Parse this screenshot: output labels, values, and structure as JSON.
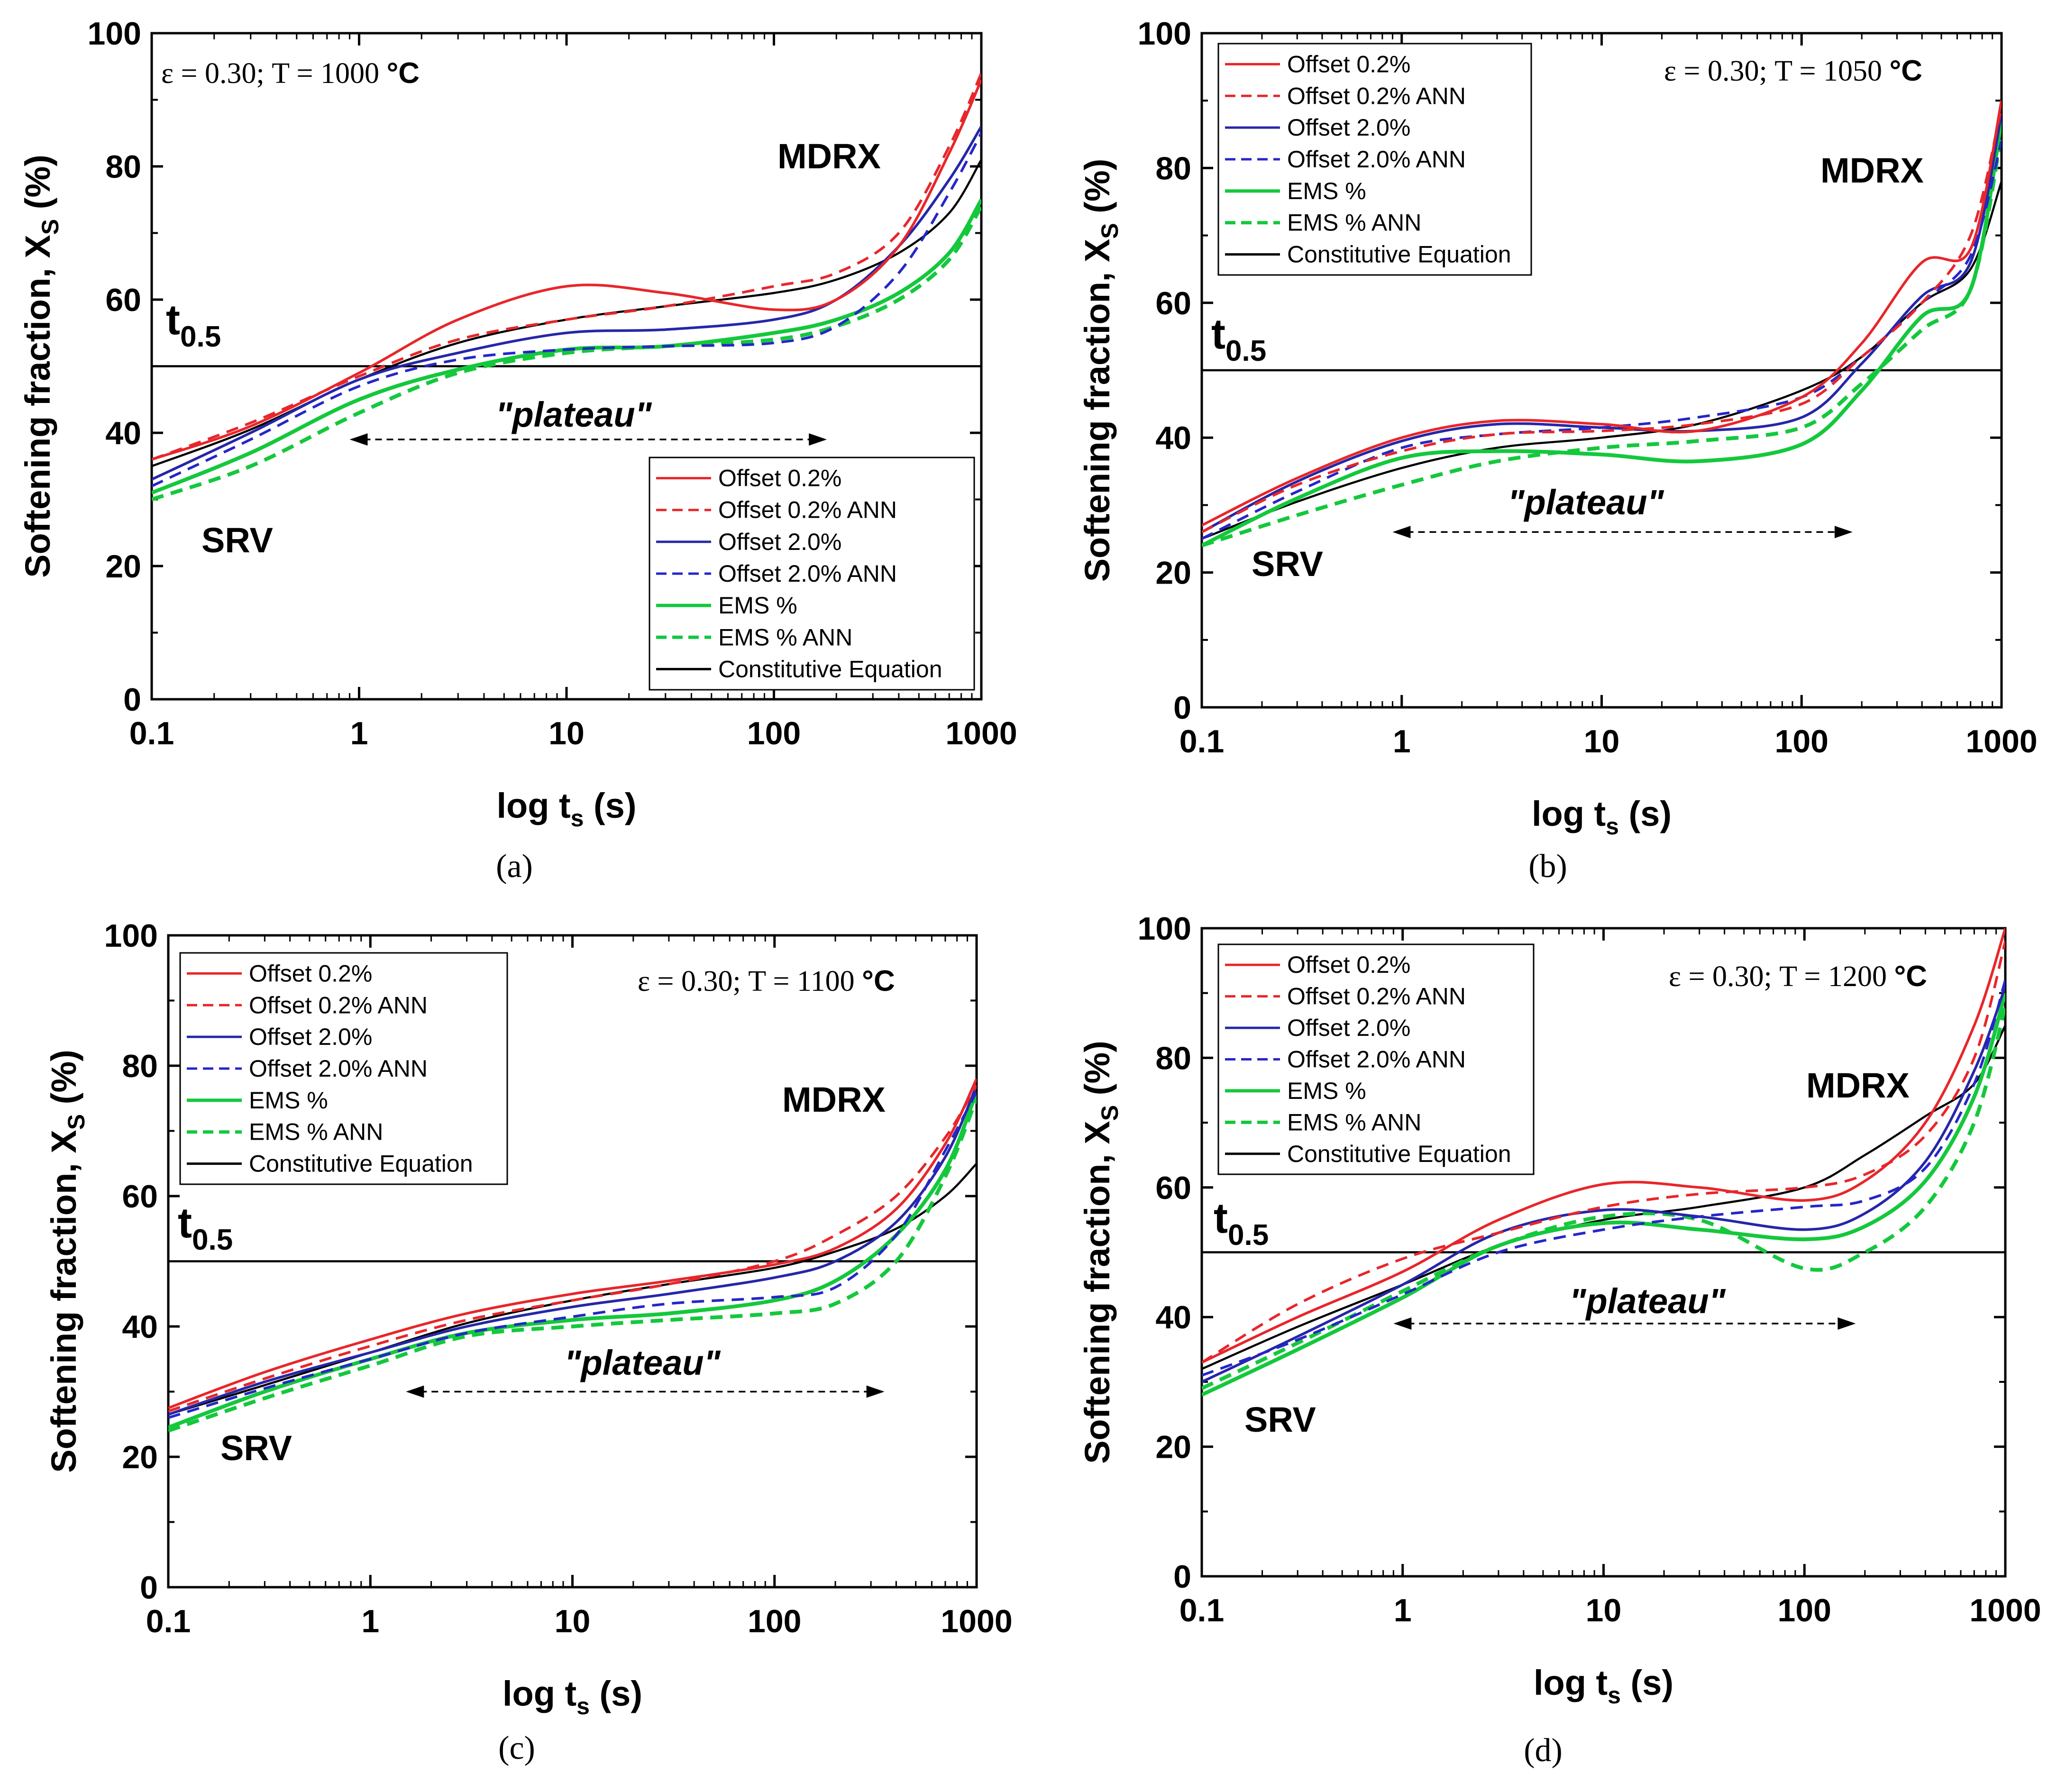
{
  "figure": {
    "series_styles": [
      {
        "name": "Offset 0.2%",
        "color": "#e8262a",
        "dashed": false
      },
      {
        "name": "Offset 0.2% ANN",
        "color": "#e8262a",
        "dashed": true
      },
      {
        "name": "Offset 2.0%",
        "color": "#2626a8",
        "dashed": false
      },
      {
        "name": "Offset 2.0% ANN",
        "color": "#2626c8",
        "dashed": true
      },
      {
        "name": "EMS %",
        "color": "#14c83c",
        "dashed": false
      },
      {
        "name": "EMS % ANN",
        "color": "#14c83c",
        "dashed": true
      },
      {
        "name": "Constitutive Equation",
        "color": "#000000",
        "dashed": false
      }
    ]
  },
  "chart_data": [
    {
      "type": "line",
      "panel_label": "(a)",
      "title": "ε = 0.30; T = 1000 °C",
      "title_main": "ε = 0.30; T = 1000 ",
      "title_unit": "°C",
      "xlabel": "log t",
      "xlabel_sub": "s",
      "xlabel_unit": " (s)",
      "ylabel": "Softening fraction, X",
      "ylabel_sub": "S",
      "ylabel_unit": " (%)",
      "xscale": "log",
      "xlim": [
        0.1,
        1000
      ],
      "ylim": [
        0,
        100
      ],
      "x_ticks": [
        "0.1",
        "1",
        "10",
        "100",
        "1000"
      ],
      "y_ticks": [
        "0",
        "20",
        "40",
        "60",
        "80",
        "100"
      ],
      "legend_position": "bottom-right",
      "annotations": {
        "t05_main": "t",
        "t05_sub": "0.5",
        "t05_level": 50,
        "plateau": "\"plateau\"",
        "plateau_range": [
          0.9,
          180
        ],
        "plateau_y": 39,
        "srv": "SRV",
        "mdrx": "MDRX"
      },
      "series": [
        {
          "name": "Offset 0.2%",
          "x": [
            0.1,
            0.3,
            1,
            3,
            10,
            30,
            100,
            200,
            400,
            700,
            1000
          ],
          "values": [
            36,
            41,
            49,
            57,
            62,
            61,
            58.5,
            60,
            68,
            82,
            93
          ]
        },
        {
          "name": "Offset 0.2% ANN",
          "x": [
            0.1,
            0.3,
            1,
            3,
            10,
            30,
            100,
            200,
            400,
            700,
            1000
          ],
          "values": [
            36,
            41.5,
            48.5,
            54,
            57,
            59,
            62,
            64,
            70,
            83,
            94
          ]
        },
        {
          "name": "Offset 2.0%",
          "x": [
            0.1,
            0.3,
            1,
            3,
            10,
            30,
            100,
            200,
            400,
            700,
            1000
          ],
          "values": [
            33,
            40,
            48,
            52,
            55,
            55.5,
            57,
            60,
            68,
            78,
            86
          ]
        },
        {
          "name": "Offset 2.0% ANN",
          "x": [
            0.1,
            0.3,
            1,
            3,
            10,
            30,
            100,
            200,
            400,
            700,
            1000
          ],
          "values": [
            32,
            39,
            47,
            51,
            52.5,
            53,
            53.5,
            56,
            64,
            76,
            85
          ]
        },
        {
          "name": "EMS %",
          "x": [
            0.1,
            0.3,
            1,
            3,
            10,
            30,
            100,
            200,
            400,
            700,
            1000
          ],
          "values": [
            31,
            37,
            45,
            49.5,
            52.5,
            53,
            55,
            57,
            61,
            67,
            75
          ]
        },
        {
          "name": "EMS % ANN",
          "x": [
            0.1,
            0.3,
            1,
            3,
            10,
            30,
            100,
            200,
            400,
            700,
            1000
          ],
          "values": [
            30,
            35,
            43,
            49,
            52,
            53,
            54,
            56,
            60,
            66,
            74
          ]
        },
        {
          "name": "Constitutive Equation",
          "x": [
            0.1,
            0.3,
            1,
            3,
            10,
            30,
            100,
            200,
            400,
            700,
            1000
          ],
          "values": [
            35,
            40.5,
            48,
            53.5,
            57,
            59,
            61,
            63,
            67,
            73,
            81
          ]
        }
      ]
    },
    {
      "type": "line",
      "panel_label": "(b)",
      "title": "ε = 0.30; T = 1050 °C",
      "title_main": "ε = 0.30; T = 1050 ",
      "title_unit": "°C",
      "xlabel": "log t",
      "xlabel_sub": "s",
      "xlabel_unit": " (s)",
      "ylabel": "Softening fraction, X",
      "ylabel_sub": "S",
      "ylabel_unit": " (%)",
      "xscale": "log",
      "xlim": [
        0.1,
        1000
      ],
      "ylim": [
        0,
        100
      ],
      "x_ticks": [
        "0.1",
        "1",
        "10",
        "100",
        "1000"
      ],
      "y_ticks": [
        "0",
        "20",
        "40",
        "60",
        "80",
        "100"
      ],
      "legend_position": "top-left",
      "annotations": {
        "t05_main": "t",
        "t05_sub": "0.5",
        "t05_level": 50,
        "plateau": "\"plateau\"",
        "plateau_range": [
          0.9,
          180
        ],
        "plateau_y": 26,
        "srv": "SRV",
        "mdrx": "MDRX"
      },
      "series": [
        {
          "name": "Offset 0.2%",
          "x": [
            0.1,
            0.3,
            1,
            3,
            10,
            30,
            100,
            200,
            400,
            700,
            1000
          ],
          "values": [
            27,
            34,
            40,
            42.5,
            42,
            41,
            46,
            54,
            66,
            68,
            90
          ]
        },
        {
          "name": "Offset 0.2% ANN",
          "x": [
            0.1,
            0.3,
            1,
            3,
            10,
            30,
            100,
            200,
            400,
            700,
            1000
          ],
          "values": [
            26,
            33,
            38,
            40.5,
            41,
            42,
            45,
            52,
            60,
            70,
            89
          ]
        },
        {
          "name": "Offset 2.0%",
          "x": [
            0.1,
            0.3,
            1,
            3,
            10,
            30,
            100,
            200,
            400,
            700,
            1000
          ],
          "values": [
            26,
            33.5,
            39.5,
            42,
            41.5,
            41,
            43,
            51,
            61,
            66,
            88
          ]
        },
        {
          "name": "Offset 2.0% ANN",
          "x": [
            0.1,
            0.3,
            1,
            3,
            10,
            30,
            100,
            200,
            400,
            700,
            1000
          ],
          "values": [
            25,
            32,
            38.5,
            40.5,
            41.5,
            43,
            46,
            52,
            60,
            67,
            84
          ]
        },
        {
          "name": "EMS %",
          "x": [
            0.1,
            0.3,
            1,
            3,
            10,
            30,
            100,
            200,
            400,
            700,
            1000
          ],
          "values": [
            24,
            31,
            37,
            38,
            37.5,
            36.5,
            39,
            47,
            58,
            62,
            87
          ]
        },
        {
          "name": "EMS % ANN",
          "x": [
            0.1,
            0.3,
            1,
            3,
            10,
            30,
            100,
            200,
            400,
            700,
            1000
          ],
          "values": [
            24,
            28.5,
            33,
            36.5,
            38.5,
            39.5,
            41.5,
            48,
            56,
            62,
            85
          ]
        },
        {
          "name": "Constitutive Equation",
          "x": [
            0.1,
            0.3,
            1,
            3,
            10,
            30,
            100,
            200,
            400,
            700,
            1000
          ],
          "values": [
            25,
            30.5,
            35.5,
            38.5,
            40,
            42,
            47,
            52,
            60,
            65,
            78
          ]
        }
      ]
    },
    {
      "type": "line",
      "panel_label": "(c)",
      "title": "ε = 0.30; T = 1100 °C",
      "title_main": "ε = 0.30; T = 1100 ",
      "title_unit": "°C",
      "xlabel": "log t",
      "xlabel_sub": "s",
      "xlabel_unit": " (s)",
      "ylabel": "Softening fraction, X",
      "ylabel_sub": "S",
      "ylabel_unit": " (%)",
      "xscale": "log",
      "xlim": [
        0.1,
        1000
      ],
      "ylim": [
        0,
        100
      ],
      "x_ticks": [
        "0.1",
        "1",
        "10",
        "100",
        "1000"
      ],
      "y_ticks": [
        "0",
        "20",
        "40",
        "60",
        "80",
        "100"
      ],
      "legend_position": "top-left",
      "annotations": {
        "t05_main": "t",
        "t05_sub": "0.5",
        "t05_level": 50,
        "plateau": "\"plateau\"",
        "plateau_range": [
          1.5,
          350
        ],
        "plateau_y": 30,
        "srv": "SRV",
        "mdrx": "MDRX"
      },
      "series": [
        {
          "name": "Offset 0.2%",
          "x": [
            0.1,
            0.3,
            1,
            3,
            10,
            30,
            100,
            200,
            400,
            700,
            1000
          ],
          "values": [
            27.5,
            33,
            38,
            42,
            45,
            47,
            49.5,
            52,
            58,
            68,
            78
          ]
        },
        {
          "name": "Offset 0.2% ANN",
          "x": [
            0.1,
            0.3,
            1,
            3,
            10,
            30,
            100,
            200,
            400,
            700,
            1000
          ],
          "values": [
            27,
            32,
            37,
            41,
            44,
            46.5,
            50,
            54,
            60,
            69,
            77
          ]
        },
        {
          "name": "Offset 2.0%",
          "x": [
            0.1,
            0.3,
            1,
            3,
            10,
            30,
            100,
            200,
            400,
            700,
            1000
          ],
          "values": [
            26.5,
            31.5,
            36,
            40,
            43,
            45,
            47.5,
            50,
            56,
            66,
            77
          ]
        },
        {
          "name": "Offset 2.0% ANN",
          "x": [
            0.1,
            0.3,
            1,
            3,
            10,
            30,
            100,
            200,
            400,
            700,
            1000
          ],
          "values": [
            26,
            30.5,
            35,
            39,
            41.5,
            43.5,
            44.5,
            46,
            54,
            67,
            76
          ]
        },
        {
          "name": "EMS %",
          "x": [
            0.1,
            0.3,
            1,
            3,
            10,
            30,
            100,
            200,
            400,
            700,
            1000
          ],
          "values": [
            24.5,
            30,
            35,
            39,
            41,
            42,
            44,
            47,
            54,
            64,
            76
          ]
        },
        {
          "name": "EMS % ANN",
          "x": [
            0.1,
            0.3,
            1,
            3,
            10,
            30,
            100,
            200,
            400,
            700,
            1000
          ],
          "values": [
            24,
            29,
            34,
            38.5,
            40,
            41,
            42,
            43.5,
            50,
            63,
            75
          ]
        },
        {
          "name": "Constitutive Equation",
          "x": [
            0.1,
            0.3,
            1,
            3,
            10,
            30,
            100,
            200,
            400,
            700,
            1000
          ],
          "values": [
            26.5,
            31,
            36,
            40.5,
            44,
            46.5,
            49,
            51.5,
            55,
            60,
            65
          ]
        }
      ]
    },
    {
      "type": "line",
      "panel_label": "(d)",
      "title": "ε = 0.30; T = 1200 °C",
      "title_main": "ε = 0.30; T = 1200 ",
      "title_unit": "°C",
      "xlabel": "log t",
      "xlabel_sub": "s",
      "xlabel_unit": " (s)",
      "ylabel": "Softening fraction, X",
      "ylabel_sub": "S",
      "ylabel_unit": " (%)",
      "xscale": "log",
      "xlim": [
        0.1,
        1000
      ],
      "ylim": [
        0,
        100
      ],
      "x_ticks": [
        "0.1",
        "1",
        "10",
        "100",
        "1000"
      ],
      "y_ticks": [
        "0",
        "20",
        "40",
        "60",
        "80",
        "100"
      ],
      "legend_position": "top-left",
      "annotations": {
        "t05_main": "t",
        "t05_sub": "0.5",
        "t05_level": 50,
        "plateau": "\"plateau\"",
        "plateau_range": [
          0.9,
          180
        ],
        "plateau_y": 39,
        "srv": "SRV",
        "mdrx": "MDRX"
      },
      "series": [
        {
          "name": "Offset 0.2%",
          "x": [
            0.1,
            0.3,
            1,
            3,
            10,
            30,
            100,
            200,
            400,
            700,
            1000
          ],
          "values": [
            33,
            40,
            47,
            55,
            60.5,
            60,
            58,
            61,
            70,
            85,
            100
          ]
        },
        {
          "name": "Offset 0.2% ANN",
          "x": [
            0.1,
            0.3,
            1,
            3,
            10,
            30,
            100,
            200,
            400,
            700,
            1000
          ],
          "values": [
            33,
            42,
            49,
            53,
            57,
            59,
            60,
            62,
            68,
            80,
            98
          ]
        },
        {
          "name": "Offset 2.0%",
          "x": [
            0.1,
            0.3,
            1,
            3,
            10,
            30,
            100,
            200,
            400,
            700,
            1000
          ],
          "values": [
            30,
            37,
            45,
            53,
            56.5,
            55.5,
            53.5,
            56,
            64,
            78,
            91
          ]
        },
        {
          "name": "Offset 2.0% ANN",
          "x": [
            0.1,
            0.3,
            1,
            3,
            10,
            30,
            100,
            200,
            400,
            700,
            1000
          ],
          "values": [
            31,
            36.5,
            43.5,
            50,
            53.5,
            55.5,
            57,
            58,
            63,
            76,
            92
          ]
        },
        {
          "name": "EMS %",
          "x": [
            0.1,
            0.3,
            1,
            3,
            10,
            30,
            100,
            200,
            400,
            700,
            1000
          ],
          "values": [
            28,
            35,
            43,
            51,
            54.5,
            53.5,
            52,
            54,
            61,
            74,
            90
          ]
        },
        {
          "name": "EMS % ANN",
          "x": [
            0.1,
            0.3,
            1,
            3,
            10,
            30,
            100,
            200,
            400,
            700,
            1000
          ],
          "values": [
            29,
            36,
            44,
            51,
            55.5,
            55,
            47.5,
            50,
            57,
            70,
            88
          ]
        },
        {
          "name": "Constitutive Equation",
          "x": [
            0.1,
            0.3,
            1,
            3,
            10,
            30,
            100,
            200,
            400,
            700,
            1000
          ],
          "values": [
            32,
            38.5,
            45,
            51,
            55,
            57,
            60,
            65,
            71,
            76,
            85
          ]
        }
      ]
    }
  ]
}
